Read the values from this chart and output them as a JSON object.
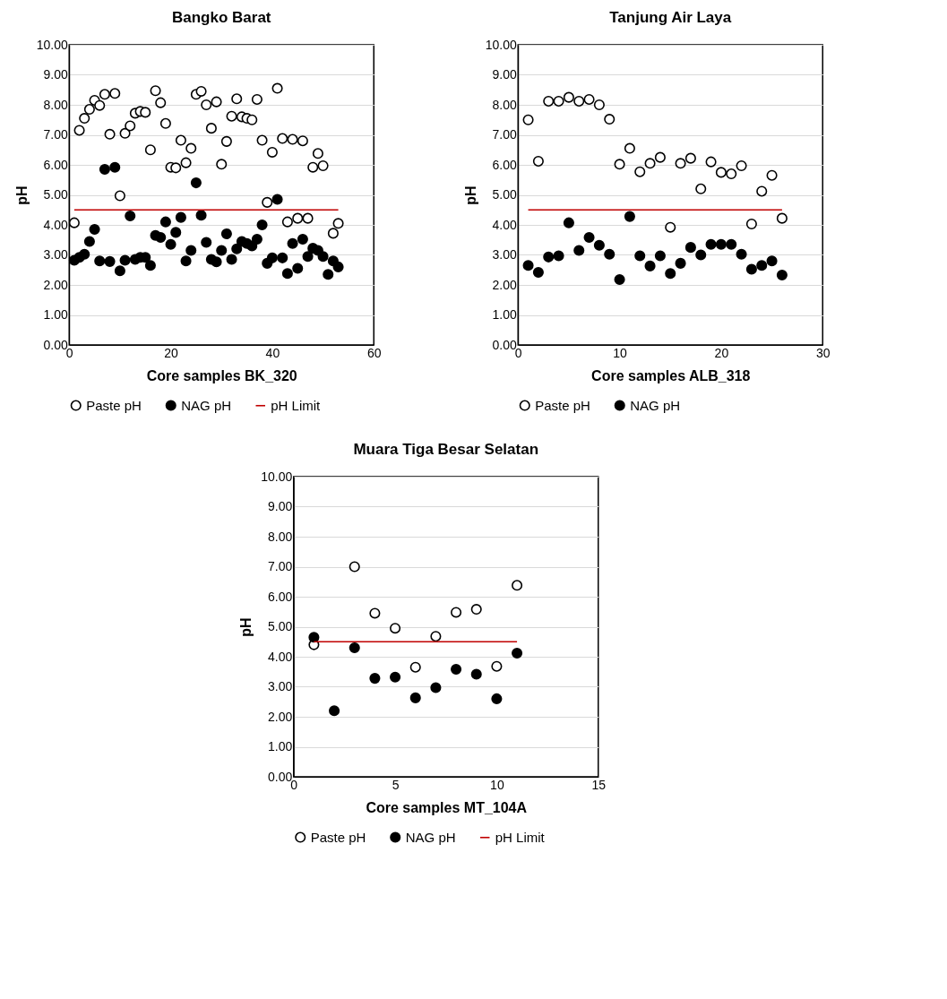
{
  "chart_data": [
    {
      "type": "scatter",
      "title": "Bangko Barat",
      "xlabel": "Core samples BK_320",
      "ylabel": "pH",
      "xlim": [
        0,
        60
      ],
      "xticks": [
        0,
        20,
        40,
        60
      ],
      "ylim": [
        0,
        10
      ],
      "yticks": [
        {
          "value": 0,
          "label": "0.00"
        },
        {
          "value": 1,
          "label": "1.00"
        },
        {
          "value": 2,
          "label": "2.00"
        },
        {
          "value": 3,
          "label": "3.00"
        },
        {
          "value": 4,
          "label": "4.00"
        },
        {
          "value": 5,
          "label": "5.00"
        },
        {
          "value": 6,
          "label": "6.00"
        },
        {
          "value": 7,
          "label": "7.00"
        },
        {
          "value": 8,
          "label": "8.00"
        },
        {
          "value": 9,
          "label": "9.00"
        },
        {
          "value": 10,
          "label": "10.00"
        }
      ],
      "grid": "y",
      "legend": "bottom",
      "marker": "circle",
      "series": [
        {
          "name": "Paste pH",
          "color": "#ffffff",
          "x": [
            1,
            2,
            3,
            4,
            5,
            6,
            7,
            8,
            9,
            10,
            11,
            12,
            13,
            14,
            15,
            16,
            17,
            18,
            19,
            20,
            21,
            22,
            23,
            24,
            25,
            26,
            27,
            28,
            29,
            30,
            31,
            32,
            33,
            34,
            35,
            36,
            37,
            38,
            39,
            40,
            41,
            42,
            43,
            44,
            45,
            46,
            47,
            48,
            49,
            50,
            52,
            53
          ],
          "values": [
            4.07,
            7.15,
            7.55,
            7.85,
            8.15,
            7.98,
            8.35,
            7.02,
            8.38,
            4.97,
            7.05,
            7.3,
            7.72,
            7.78,
            7.75,
            6.5,
            8.47,
            8.07,
            7.38,
            5.92,
            5.9,
            6.82,
            6.07,
            6.55,
            8.35,
            8.45,
            8.0,
            7.22,
            8.1,
            6.02,
            6.78,
            7.62,
            8.2,
            7.6,
            7.55,
            7.5,
            8.18,
            6.82,
            4.75,
            6.42,
            8.55,
            6.88,
            4.1,
            6.85,
            4.22,
            6.8,
            4.22,
            5.92,
            6.38,
            5.97,
            3.72,
            4.05
          ]
        },
        {
          "name": "NAG pH",
          "color": "#000000",
          "x": [
            1,
            2,
            3,
            4,
            5,
            6,
            7,
            8,
            9,
            10,
            11,
            12,
            13,
            14,
            15,
            16,
            17,
            18,
            19,
            20,
            21,
            22,
            23,
            24,
            25,
            26,
            27,
            28,
            29,
            30,
            31,
            32,
            33,
            34,
            35,
            36,
            37,
            38,
            39,
            40,
            41,
            42,
            43,
            44,
            45,
            46,
            47,
            48,
            49,
            50,
            51,
            52,
            53
          ],
          "values": [
            2.82,
            2.92,
            3.02,
            3.45,
            3.85,
            2.8,
            5.85,
            2.78,
            5.92,
            2.47,
            2.82,
            4.3,
            2.85,
            2.92,
            2.92,
            2.65,
            3.65,
            3.58,
            4.1,
            3.35,
            3.75,
            4.25,
            2.8,
            3.15,
            5.4,
            4.32,
            3.42,
            2.85,
            2.77,
            3.15,
            3.7,
            2.85,
            3.2,
            3.45,
            3.38,
            3.3,
            3.52,
            4.0,
            2.72,
            2.9,
            4.85,
            2.9,
            2.38,
            3.38,
            2.55,
            3.52,
            2.95,
            3.22,
            3.15,
            2.95,
            2.35,
            2.8,
            2.6
          ]
        },
        {
          "name": "pH Limit",
          "type": "line",
          "marker": "none",
          "color": "#c00000",
          "x": [
            1,
            53
          ],
          "values": [
            4.5,
            4.5
          ]
        }
      ]
    },
    {
      "type": "scatter",
      "title": "Tanjung Air Laya",
      "xlabel": "Core samples ALB_318",
      "ylabel": "pH",
      "xlim": [
        0,
        30
      ],
      "xticks": [
        0,
        10,
        20,
        30
      ],
      "ylim": [
        0,
        10
      ],
      "yticks": [
        {
          "value": 0,
          "label": "0.00"
        },
        {
          "value": 1,
          "label": "1.00"
        },
        {
          "value": 2,
          "label": "2.00"
        },
        {
          "value": 3,
          "label": "3.00"
        },
        {
          "value": 4,
          "label": "4.00"
        },
        {
          "value": 5,
          "label": "5.00"
        },
        {
          "value": 6,
          "label": "6.00"
        },
        {
          "value": 7,
          "label": "7.00"
        },
        {
          "value": 8,
          "label": "8.00"
        },
        {
          "value": 9,
          "label": "9.00"
        },
        {
          "value": 10,
          "label": "10.00"
        }
      ],
      "grid": "y",
      "legend": "bottom",
      "marker": "circle",
      "series": [
        {
          "name": "Paste pH",
          "color": "#ffffff",
          "x": [
            1,
            2,
            3,
            4,
            5,
            6,
            7,
            8,
            9,
            10,
            11,
            12,
            13,
            14,
            15,
            16,
            17,
            18,
            19,
            20,
            21,
            22,
            23,
            24,
            25,
            26
          ],
          "values": [
            7.5,
            6.12,
            8.12,
            8.12,
            8.25,
            8.12,
            8.18,
            8.0,
            7.52,
            6.02,
            6.55,
            5.77,
            6.05,
            6.25,
            3.92,
            6.05,
            6.22,
            5.2,
            6.1,
            5.75,
            5.7,
            5.97,
            4.03,
            5.12,
            5.65,
            4.22
          ]
        },
        {
          "name": "NAG pH",
          "color": "#000000",
          "x": [
            1,
            2,
            3,
            4,
            5,
            6,
            7,
            8,
            9,
            10,
            11,
            12,
            13,
            14,
            15,
            16,
            17,
            18,
            19,
            20,
            21,
            22,
            23,
            24,
            25,
            26
          ],
          "values": [
            2.65,
            2.42,
            2.93,
            2.97,
            4.07,
            3.15,
            3.58,
            3.32,
            3.02,
            2.18,
            4.28,
            2.97,
            2.63,
            2.97,
            2.38,
            2.72,
            3.25,
            3.0,
            3.35,
            3.35,
            3.35,
            3.02,
            2.52,
            2.65,
            2.8,
            2.33
          ]
        },
        {
          "type": "line",
          "marker": "none",
          "color": "#c00000",
          "x": [
            1,
            26
          ],
          "values": [
            4.5,
            4.5
          ]
        }
      ]
    },
    {
      "type": "scatter",
      "title": "Muara Tiga Besar Selatan",
      "xlabel": "Core samples MT_104A",
      "ylabel": "pH",
      "xlim": [
        0,
        15
      ],
      "xticks": [
        0,
        5,
        10,
        15
      ],
      "ylim": [
        0,
        10
      ],
      "yticks": [
        {
          "value": 0,
          "label": "0.00"
        },
        {
          "value": 1,
          "label": "1.00"
        },
        {
          "value": 2,
          "label": "2.00"
        },
        {
          "value": 3,
          "label": "3.00"
        },
        {
          "value": 4,
          "label": "4.00"
        },
        {
          "value": 5,
          "label": "5.00"
        },
        {
          "value": 6,
          "label": "6.00"
        },
        {
          "value": 7,
          "label": "7.00"
        },
        {
          "value": 8,
          "label": "8.00"
        },
        {
          "value": 9,
          "label": "9.00"
        },
        {
          "value": 10,
          "label": "10.00"
        }
      ],
      "grid": "y",
      "legend": "bottom",
      "marker": "circle",
      "series": [
        {
          "name": "Paste pH",
          "color": "#ffffff",
          "x": [
            1,
            3,
            4,
            5,
            6,
            7,
            8,
            9,
            10,
            11
          ],
          "values": [
            4.4,
            7.0,
            5.45,
            4.95,
            3.65,
            4.68,
            5.48,
            5.58,
            3.68,
            6.38
          ]
        },
        {
          "name": "NAG pH",
          "color": "#000000",
          "x": [
            1,
            2,
            3,
            4,
            5,
            6,
            7,
            8,
            9,
            10,
            11
          ],
          "values": [
            4.65,
            2.2,
            4.3,
            3.28,
            3.32,
            2.63,
            2.97,
            3.58,
            3.42,
            2.6,
            4.12
          ]
        },
        {
          "name": "pH Limit",
          "type": "line",
          "marker": "none",
          "color": "#c00000",
          "x": [
            1,
            11
          ],
          "values": [
            4.5,
            4.5
          ]
        }
      ]
    }
  ]
}
